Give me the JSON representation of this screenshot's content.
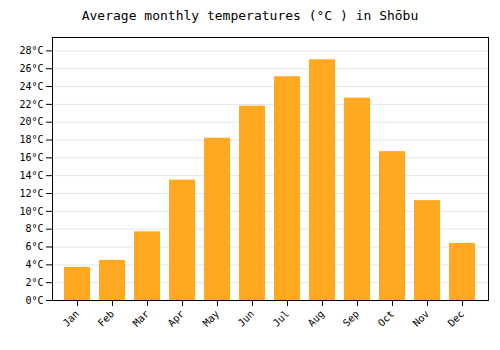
{
  "chart_data": {
    "type": "bar",
    "title": "Average monthly temperatures (°C ) in Shōbu",
    "categories": [
      "Jan",
      "Feb",
      "Mar",
      "Apr",
      "May",
      "Jun",
      "Jul",
      "Aug",
      "Sep",
      "Oct",
      "Nov",
      "Dec"
    ],
    "values": [
      3.7,
      4.5,
      7.7,
      13.5,
      18.2,
      21.8,
      25.1,
      27.0,
      22.7,
      16.7,
      11.2,
      6.4
    ],
    "color": "#FFA820",
    "ylim": [
      0,
      29.5
    ],
    "yticks": [
      {
        "value": 0,
        "label": "0°C"
      },
      {
        "value": 2,
        "label": "2°C"
      },
      {
        "value": 4,
        "label": "4°C"
      },
      {
        "value": 6,
        "label": "6°C"
      },
      {
        "value": 8,
        "label": "8°C"
      },
      {
        "value": 10,
        "label": "10°C"
      },
      {
        "value": 12,
        "label": "12°C"
      },
      {
        "value": 14,
        "label": "14°C"
      },
      {
        "value": 16,
        "label": "16°C"
      },
      {
        "value": 18,
        "label": "18°C"
      },
      {
        "value": 20,
        "label": "20°C"
      },
      {
        "value": 22,
        "label": "22°C"
      },
      {
        "value": 24,
        "label": "24°C"
      },
      {
        "value": 26,
        "label": "26°C"
      },
      {
        "value": 28,
        "label": "28°C"
      }
    ],
    "grid": true
  }
}
